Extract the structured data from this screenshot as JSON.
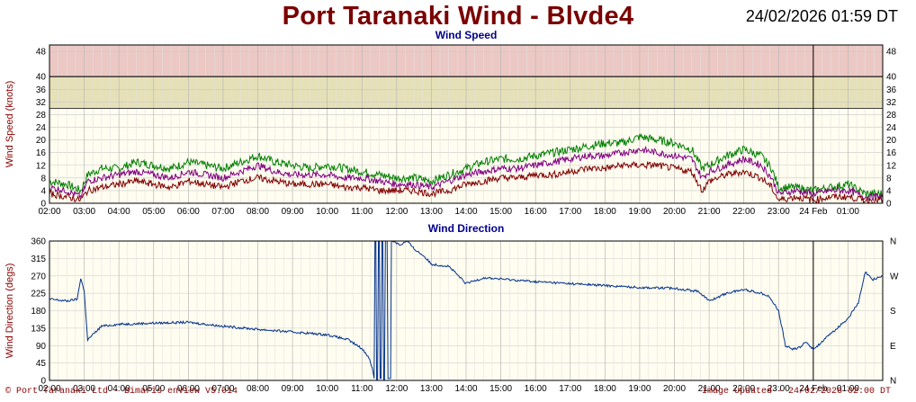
{
  "header": {
    "title": "Port Taranaki Wind - Blvde4",
    "datetime": "24/02/2026 01:59 DT"
  },
  "footer": {
    "left": "© Port Taranaki Ltd - Bimaris enView V5.014",
    "right": "Image Updated - 24/02/2026 02:00 DT"
  },
  "colors": {
    "title": "#7a0000",
    "subtitle": "#00008b",
    "axis_label": "#8b0000",
    "plot_bg": "#fffdf0",
    "band_red": "#ecc8c4",
    "band_yellow": "#e6e0b8",
    "series_gust": "#008000",
    "series_avg": "#800080",
    "series_min": "#800000",
    "series_direction": "#00308a"
  },
  "chart_data": [
    {
      "type": "line",
      "title": "Wind Speed",
      "ylabel": "Wind Speed (knots)",
      "ylim": [
        0,
        50
      ],
      "yticks": [
        0,
        4,
        8,
        12,
        16,
        20,
        24,
        28,
        32,
        36,
        40,
        48
      ],
      "x_tick_labels": [
        "02:00",
        "03:00",
        "04:00",
        "05:00",
        "06:00",
        "07:00",
        "08:00",
        "09:00",
        "10:00",
        "11:00",
        "12:00",
        "13:00",
        "14:00",
        "15:00",
        "16:00",
        "17:00",
        "18:00",
        "19:00",
        "20:00",
        "21:00",
        "22:00",
        "23:00",
        "24 Feb",
        "01:00"
      ],
      "x_start_hours": 2.0,
      "x_end_hours": 26.0,
      "day_boundary_hours": 24.0,
      "bands": [
        {
          "from": 30,
          "to": 40,
          "color": "#e6e0b8"
        },
        {
          "from": 40,
          "to": 50,
          "color": "#ecc8c4"
        }
      ],
      "grid": true,
      "series": [
        {
          "role": "gust",
          "color": "#008000",
          "x": [
            2.0,
            2.5,
            2.9,
            3.1,
            3.5,
            4.0,
            4.5,
            5.0,
            5.5,
            6.0,
            6.5,
            7.0,
            7.5,
            8.0,
            8.5,
            9.0,
            9.5,
            10.0,
            10.5,
            11.0,
            11.5,
            12.0,
            12.5,
            13.0,
            13.5,
            14.0,
            14.5,
            15.0,
            15.5,
            16.0,
            16.5,
            17.0,
            17.5,
            18.0,
            18.5,
            19.0,
            19.5,
            20.0,
            20.5,
            20.8,
            21.0,
            21.5,
            22.0,
            22.5,
            22.8,
            23.0,
            23.5,
            24.0,
            24.5,
            25.0,
            25.5,
            26.0
          ],
          "values": [
            7,
            6,
            4,
            9,
            11,
            11,
            13,
            12,
            11,
            13,
            12,
            11,
            13,
            15,
            13,
            12,
            11,
            12,
            11,
            10,
            9,
            8,
            8,
            7,
            9,
            11,
            13,
            14,
            14,
            15,
            16,
            17,
            18,
            19,
            19,
            21,
            20,
            19,
            17,
            11,
            12,
            15,
            17,
            15,
            11,
            5,
            5,
            4,
            5,
            6,
            3,
            3
          ]
        },
        {
          "role": "average",
          "color": "#800080",
          "x": [
            2.0,
            2.5,
            2.9,
            3.1,
            3.5,
            4.0,
            4.5,
            5.0,
            5.5,
            6.0,
            6.5,
            7.0,
            7.5,
            8.0,
            8.5,
            9.0,
            9.5,
            10.0,
            10.5,
            11.0,
            11.5,
            12.0,
            12.5,
            13.0,
            13.5,
            14.0,
            14.5,
            15.0,
            15.5,
            16.0,
            16.5,
            17.0,
            17.5,
            18.0,
            18.5,
            19.0,
            19.5,
            20.0,
            20.5,
            20.8,
            21.0,
            21.5,
            22.0,
            22.5,
            22.8,
            23.0,
            23.5,
            24.0,
            24.5,
            25.0,
            25.5,
            26.0
          ],
          "values": [
            5,
            4,
            2,
            7,
            8,
            9,
            10,
            9,
            8,
            10,
            9,
            8,
            10,
            12,
            10,
            9,
            9,
            9,
            8,
            8,
            7,
            6,
            6,
            5,
            7,
            9,
            10,
            11,
            11,
            12,
            13,
            14,
            15,
            15,
            16,
            17,
            16,
            15,
            14,
            8,
            10,
            12,
            14,
            12,
            8,
            3,
            4,
            3,
            4,
            4,
            2,
            2
          ]
        },
        {
          "role": "minimum",
          "color": "#800000",
          "x": [
            2.0,
            2.5,
            2.9,
            3.1,
            3.5,
            4.0,
            4.5,
            5.0,
            5.5,
            6.0,
            6.5,
            7.0,
            7.5,
            8.0,
            8.5,
            9.0,
            9.5,
            10.0,
            10.5,
            11.0,
            11.5,
            12.0,
            12.5,
            13.0,
            13.5,
            14.0,
            14.5,
            15.0,
            15.5,
            16.0,
            16.5,
            17.0,
            17.5,
            18.0,
            18.5,
            19.0,
            19.5,
            20.0,
            20.5,
            20.8,
            21.0,
            21.5,
            22.0,
            22.5,
            22.8,
            23.0,
            23.5,
            24.0,
            24.5,
            25.0,
            25.5,
            26.0
          ],
          "values": [
            3,
            2,
            1,
            4,
            5,
            6,
            7,
            6,
            5,
            7,
            6,
            5,
            7,
            8,
            7,
            6,
            6,
            6,
            5,
            5,
            4,
            4,
            4,
            3,
            4,
            6,
            7,
            8,
            8,
            9,
            9,
            10,
            11,
            11,
            12,
            12,
            12,
            11,
            10,
            4,
            7,
            9,
            10,
            8,
            5,
            1,
            2,
            1,
            2,
            2,
            1,
            1
          ]
        }
      ]
    },
    {
      "type": "line",
      "title": "Wind Direction",
      "ylabel": "Wind Direction (degs)",
      "ylim": [
        0,
        360
      ],
      "yticks": [
        0,
        45,
        90,
        135,
        180,
        225,
        270,
        315,
        360
      ],
      "compass_labels": [
        "N",
        "E",
        "S",
        "W",
        "N"
      ],
      "compass_values": [
        0,
        90,
        180,
        270,
        360
      ],
      "x_tick_labels": [
        "02:00",
        "03:00",
        "04:00",
        "05:00",
        "06:00",
        "07:00",
        "08:00",
        "09:00",
        "10:00",
        "11:00",
        "12:00",
        "13:00",
        "14:00",
        "15:00",
        "16:00",
        "17:00",
        "18:00",
        "19:00",
        "20:00",
        "21:00",
        "22:00",
        "23:00",
        "24 Feb",
        "01:00"
      ],
      "x_start_hours": 2.0,
      "x_end_hours": 26.0,
      "day_boundary_hours": 24.0,
      "grid": true,
      "series": [
        {
          "role": "direction",
          "color": "#00308a",
          "x": [
            2.0,
            2.5,
            2.8,
            2.9,
            3.0,
            3.1,
            3.5,
            4.0,
            5.0,
            6.0,
            7.0,
            8.0,
            9.0,
            10.0,
            10.6,
            11.0,
            11.2,
            11.3,
            11.35,
            11.4,
            11.45,
            11.5,
            11.55,
            11.6,
            11.65,
            11.7,
            11.8,
            11.9,
            12.0,
            12.1,
            12.3,
            12.5,
            12.8,
            13.0,
            13.5,
            14.0,
            14.5,
            15.0,
            16.0,
            17.0,
            18.0,
            19.0,
            20.0,
            20.7,
            21.0,
            21.5,
            22.0,
            22.5,
            22.7,
            23.0,
            23.2,
            23.4,
            23.6,
            23.8,
            24.0,
            24.5,
            25.0,
            25.3,
            25.5,
            25.7,
            26.0
          ],
          "values": [
            210,
            205,
            210,
            265,
            230,
            105,
            140,
            145,
            148,
            150,
            140,
            132,
            125,
            118,
            105,
            82,
            60,
            30,
            5,
            360,
            0,
            360,
            5,
            360,
            0,
            360,
            5,
            360,
            355,
            350,
            360,
            340,
            320,
            300,
            295,
            250,
            265,
            262,
            255,
            250,
            245,
            240,
            238,
            230,
            205,
            225,
            235,
            225,
            220,
            180,
            90,
            80,
            85,
            100,
            80,
            120,
            160,
            200,
            280,
            260,
            270
          ]
        }
      ]
    }
  ]
}
